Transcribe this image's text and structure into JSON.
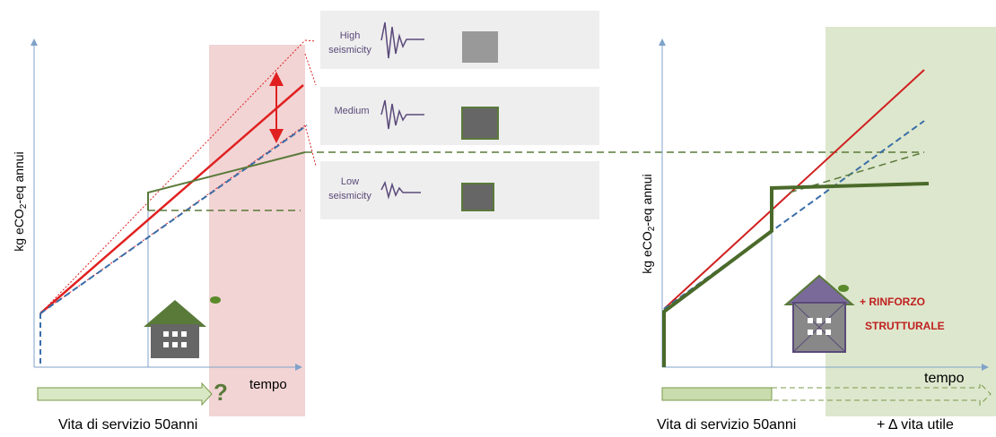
{
  "left_panel": {
    "y_axis_label": {
      "before": "kg eCO",
      "subscript": "2",
      "after": "-eq annui"
    },
    "x_axis_label": "tempo",
    "question_mark": "?",
    "service_life": "Vita di servizio 50anni"
  },
  "scenarios": [
    {
      "lines": [
        "High",
        "seismicity"
      ]
    },
    {
      "lines": [
        "Medium"
      ]
    },
    {
      "lines": [
        "Low",
        "seismicity"
      ]
    }
  ],
  "right_panel": {
    "y_axis_label": {
      "before": "kg eCO",
      "subscript": "2",
      "after": "-eq annui"
    },
    "x_axis_label": "tempo",
    "reinforcement": [
      "+ RINFORZO",
      "STRUTTURALE"
    ],
    "service_life": "Vita di servizio 50anni",
    "extension": "+ Δ vita utile"
  }
}
